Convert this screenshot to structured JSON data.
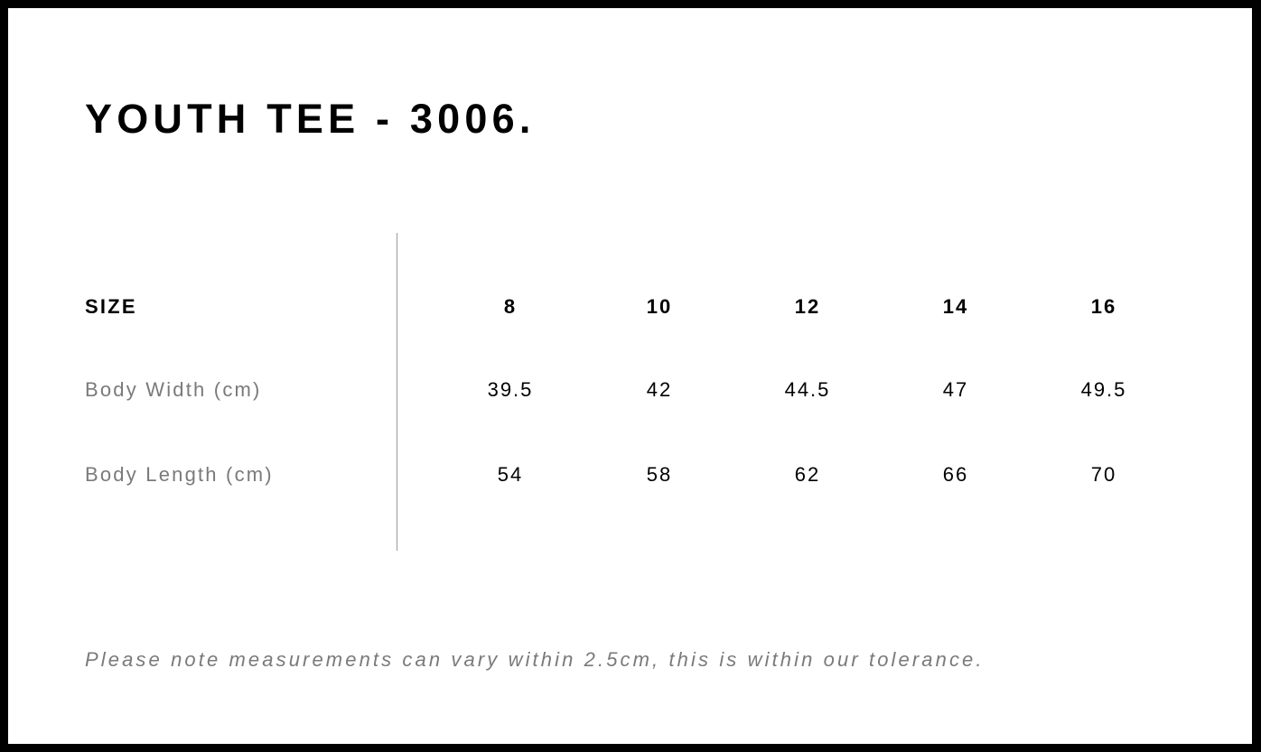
{
  "title": "YOUTH TEE - 3006.",
  "table": {
    "header": {
      "label": "SIZE",
      "values": [
        "8",
        "10",
        "12",
        "14",
        "16"
      ]
    },
    "rows": [
      {
        "label": "Body Width (cm)",
        "values": [
          "39.5",
          "42",
          "44.5",
          "47",
          "49.5"
        ]
      },
      {
        "label": "Body Length (cm)",
        "values": [
          "54",
          "58",
          "62",
          "66",
          "70"
        ]
      }
    ]
  },
  "note": "Please note measurements can vary within 2.5cm, this is within our tolerance."
}
